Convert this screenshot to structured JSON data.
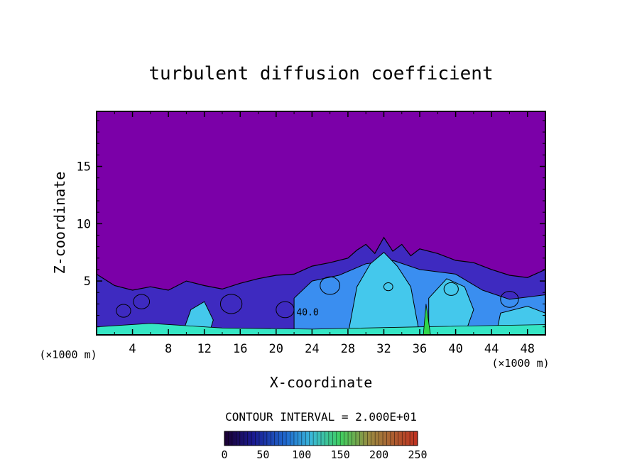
{
  "chart_data": {
    "type": "heatmap",
    "title": "turbulent diffusion coefficient",
    "xlabel": "X-coordinate",
    "ylabel": "Z-coordinate",
    "x_unit": "(×1000 m)",
    "y_unit": "(×1000 m)",
    "xlim": [
      0,
      50
    ],
    "ylim": [
      0.3,
      19.8
    ],
    "x_ticks": [
      "4",
      "8",
      "12",
      "16",
      "20",
      "24",
      "28",
      "32",
      "36",
      "40",
      "44",
      "48"
    ],
    "y_ticks": [
      "5",
      "10",
      "15"
    ],
    "contour_interval_text": "CONTOUR INTERVAL = 2.000E+01",
    "contour_label": "40.0",
    "colorbar": {
      "min": 0,
      "max": 250,
      "ticks": [
        "0",
        "50",
        "100",
        "150",
        "200",
        "250"
      ]
    },
    "background_value": 0,
    "top_boundary": {
      "x": [
        0,
        2,
        4,
        6,
        8,
        10,
        12,
        14,
        16,
        18,
        20,
        22,
        24,
        26,
        28,
        29,
        30,
        31,
        32,
        33,
        34,
        35,
        36,
        38,
        40,
        42,
        44,
        46,
        48,
        50
      ],
      "z": [
        5.6,
        4.6,
        4.2,
        4.5,
        4.2,
        5.0,
        4.6,
        4.3,
        4.8,
        5.2,
        5.5,
        5.6,
        6.3,
        6.6,
        7.0,
        7.7,
        8.2,
        7.4,
        8.8,
        7.6,
        8.2,
        7.2,
        7.8,
        7.4,
        6.8,
        6.6,
        6.0,
        5.5,
        5.3,
        6.0
      ]
    },
    "colors": {
      "background": "#7b00a8",
      "low": "#3e2ac0",
      "mid": "#3a8ef0",
      "high": "#44c8ec",
      "peak": "#35e6c4",
      "core": "#2fd64a"
    }
  }
}
